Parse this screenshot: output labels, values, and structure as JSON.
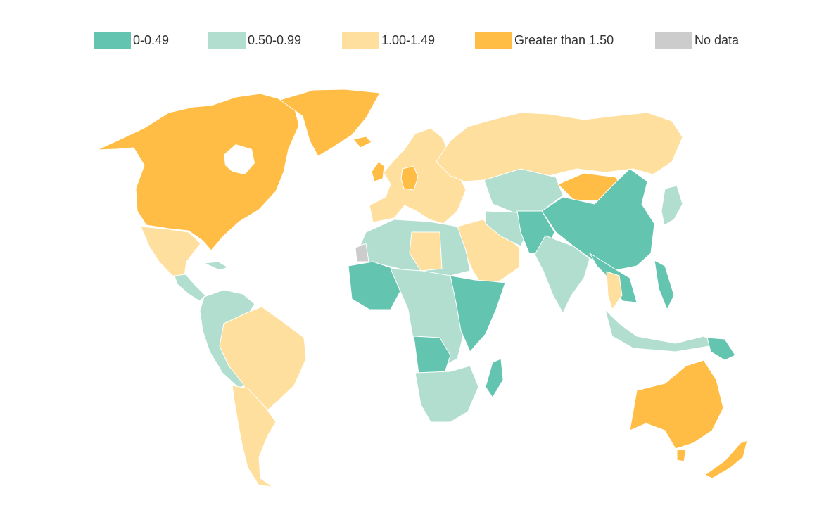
{
  "legend": {
    "items": [
      {
        "label": "0-0.49",
        "color": "#63c5b0"
      },
      {
        "label": "0.50-0.99",
        "color": "#b2ded0"
      },
      {
        "label": "1.00-1.49",
        "color": "#ffdf9e"
      },
      {
        "label": "Greater than 1.50",
        "color": "#ffbd45"
      },
      {
        "label": "No data",
        "color": "#cccccc"
      }
    ]
  },
  "map": {
    "regions": [
      {
        "name": "North America",
        "category": "Greater than 1.50"
      },
      {
        "name": "Greenland",
        "category": "Greater than 1.50"
      },
      {
        "name": "Mexico",
        "category": "1.00-1.49"
      },
      {
        "name": "Central America",
        "category": "0.50-0.99"
      },
      {
        "name": "South America (Brazil, Argentina, Chile)",
        "category": "1.00-1.49"
      },
      {
        "name": "South America (Andean)",
        "category": "0.50-0.99"
      },
      {
        "name": "Western Europe",
        "category": "1.00-1.49"
      },
      {
        "name": "Germany",
        "category": "Greater than 1.50"
      },
      {
        "name": "Russia",
        "category": "1.00-1.49"
      },
      {
        "name": "Central Asia",
        "category": "0.50-0.99"
      },
      {
        "name": "Mongolia",
        "category": "Greater than 1.50"
      },
      {
        "name": "China",
        "category": "0-0.49"
      },
      {
        "name": "South Asia",
        "category": "0-0.49"
      },
      {
        "name": "India",
        "category": "0.50-0.99"
      },
      {
        "name": "Arabian Peninsula",
        "category": "1.00-1.49"
      },
      {
        "name": "North Africa",
        "category": "0.50-0.99"
      },
      {
        "name": "Libya",
        "category": "1.00-1.49"
      },
      {
        "name": "West Africa",
        "category": "0-0.49"
      },
      {
        "name": "Central Africa",
        "category": "0.50-0.99"
      },
      {
        "name": "East Africa",
        "category": "0-0.49"
      },
      {
        "name": "Southern Africa",
        "category": "0.50-0.99"
      },
      {
        "name": "Madagascar",
        "category": "0-0.49"
      },
      {
        "name": "Southeast Asia",
        "category": "0-0.49"
      },
      {
        "name": "Indonesia",
        "category": "0.50-0.99"
      },
      {
        "name": "Australia",
        "category": "Greater than 1.50"
      },
      {
        "name": "New Zealand",
        "category": "Greater than 1.50"
      },
      {
        "name": "Western Sahara",
        "category": "No data"
      }
    ]
  }
}
